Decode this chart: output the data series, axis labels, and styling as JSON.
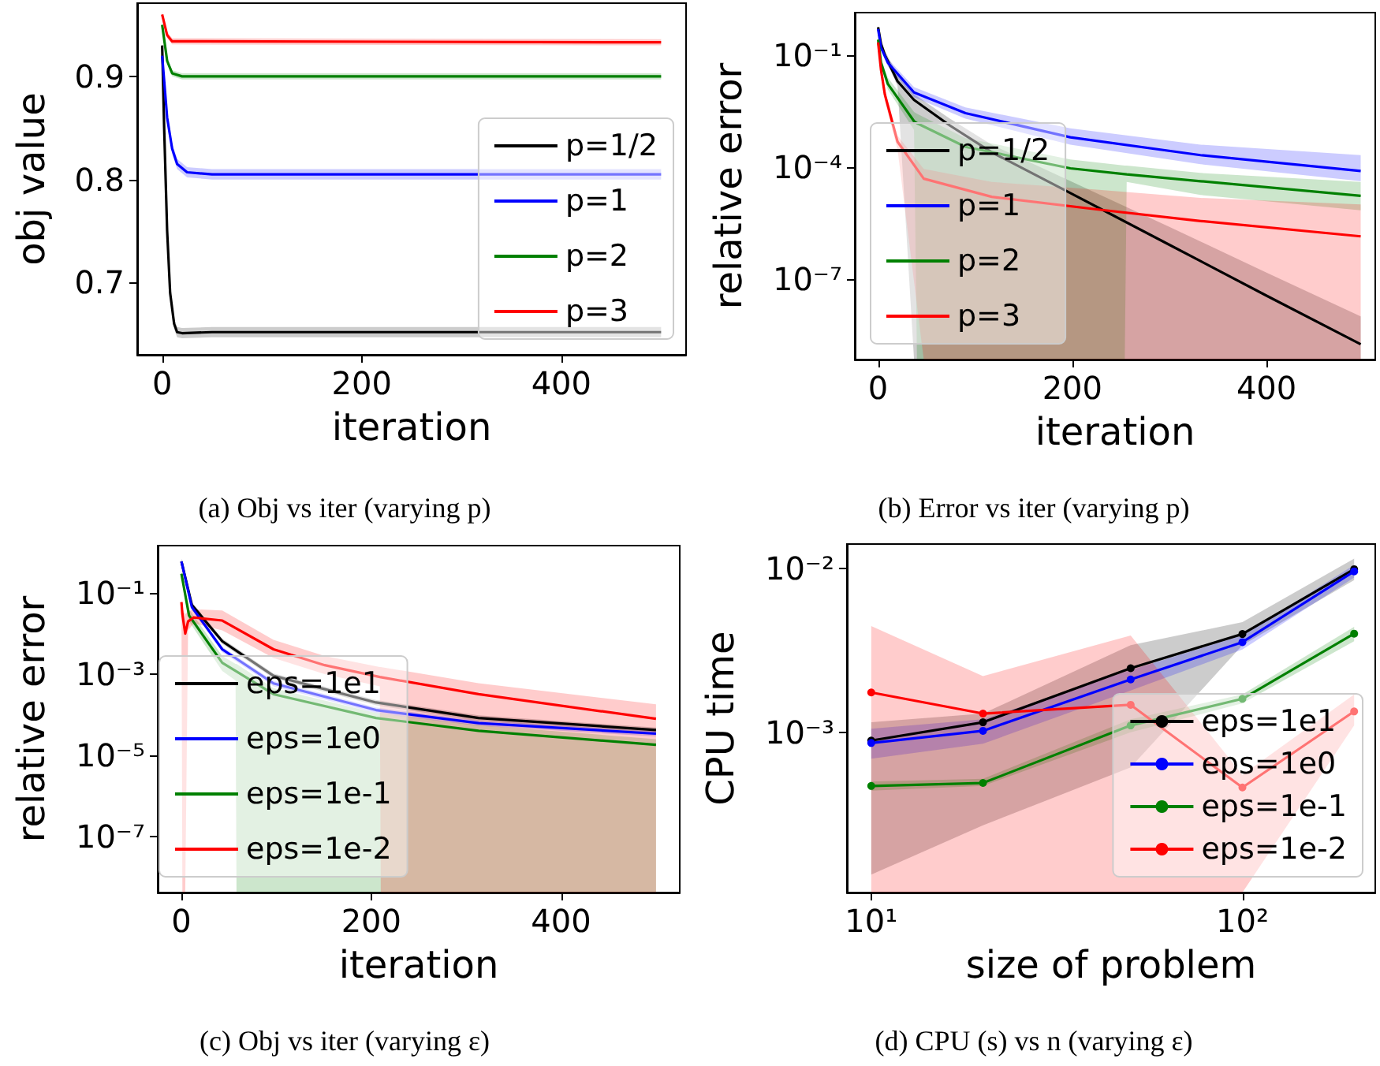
{
  "chart_data": [
    {
      "type": "line",
      "title": "(a) Obj vs iter (varying p)",
      "xlabel": "iteration",
      "ylabel": "obj value",
      "xlim": [
        -25,
        525
      ],
      "ylim": [
        0.63,
        0.971
      ],
      "xticks": [
        0,
        200,
        400
      ],
      "yticks": [
        0.7,
        0.8,
        0.9
      ],
      "legend": "bottom right",
      "series": [
        {
          "name": "p=1/2",
          "color": "#000000",
          "x": [
            0,
            2,
            5,
            8,
            12,
            15,
            20,
            50,
            100,
            500
          ],
          "values": [
            0.93,
            0.85,
            0.75,
            0.69,
            0.66,
            0.652,
            0.651,
            0.652,
            0.652,
            0.652
          ],
          "lower": [
            0.925,
            0.845,
            0.745,
            0.685,
            0.655,
            0.647,
            0.646,
            0.647,
            0.647,
            0.647
          ],
          "upper": [
            0.935,
            0.855,
            0.755,
            0.695,
            0.665,
            0.657,
            0.656,
            0.657,
            0.657,
            0.657
          ]
        },
        {
          "name": "p=1",
          "color": "#0000ff",
          "x": [
            0,
            5,
            10,
            15,
            25,
            50,
            500
          ],
          "values": [
            0.92,
            0.86,
            0.83,
            0.815,
            0.807,
            0.805,
            0.805
          ],
          "lower": [
            0.915,
            0.855,
            0.825,
            0.81,
            0.802,
            0.8,
            0.8
          ],
          "upper": [
            0.925,
            0.865,
            0.835,
            0.82,
            0.812,
            0.81,
            0.81
          ]
        },
        {
          "name": "p=2",
          "color": "#008000",
          "x": [
            0,
            5,
            10,
            20,
            500
          ],
          "values": [
            0.95,
            0.915,
            0.903,
            0.9,
            0.9
          ],
          "lower": [
            0.947,
            0.912,
            0.9,
            0.897,
            0.897
          ],
          "upper": [
            0.953,
            0.918,
            0.906,
            0.903,
            0.903
          ]
        },
        {
          "name": "p=3",
          "color": "#ff0000",
          "x": [
            0,
            5,
            10,
            500
          ],
          "values": [
            0.96,
            0.94,
            0.934,
            0.933
          ],
          "lower": [
            0.957,
            0.937,
            0.931,
            0.93
          ],
          "upper": [
            0.963,
            0.943,
            0.937,
            0.936
          ]
        }
      ]
    },
    {
      "type": "line",
      "title": "(b) Error vs iter (varying p)",
      "xlabel": "iteration",
      "ylabel": "relative error",
      "log": "y",
      "xlim": [
        -24,
        512
      ],
      "ylim": [
        7e-10,
        1.38
      ],
      "xticks": [
        0,
        200,
        400
      ],
      "yticks": [
        {
          "value": 0.1,
          "label": "10⁻¹"
        },
        {
          "value": 0.0001,
          "label": "10⁻⁴"
        },
        {
          "value": 1e-07,
          "label": "10⁻⁷"
        }
      ],
      "legend": "bottom left",
      "series": [
        {
          "name": "p=1/2",
          "color": "#000000",
          "x": [
            0,
            3,
            7,
            20,
            37,
            74,
            117,
            200,
            300,
            400,
            497
          ],
          "values": [
            0.56,
            0.2,
            0.1,
            0.02,
            0.0063,
            0.0013,
            0.00025,
            1.9e-05,
            8.3e-07,
            3.6e-08,
            1.8e-09
          ],
          "lower": [
            0.5,
            0.17,
            0.085,
            0.015,
            7e-10,
            7e-10,
            7e-10,
            7e-10,
            7e-10,
            7e-10,
            7e-10
          ],
          "upper": [
            0.6,
            0.25,
            0.13,
            0.03,
            0.009,
            0.002,
            0.0004,
            4e-05,
            2.5e-06,
            1.5e-07,
            1e-08
          ]
        },
        {
          "name": "p=1",
          "color": "#0000ff",
          "x": [
            0,
            3,
            10,
            37,
            90,
            198,
            332,
            497
          ],
          "values": [
            0.5,
            0.16,
            0.063,
            0.01,
            0.0028,
            0.00063,
            0.00021,
            7.9e-05
          ],
          "lower": [
            0.45,
            0.13,
            0.05,
            0.0075,
            0.002,
            0.0004,
            0.00012,
            4.2e-05
          ],
          "upper": [
            0.55,
            0.2,
            0.08,
            0.014,
            0.004,
            0.0011,
            0.0004,
            0.00021
          ]
        },
        {
          "name": "p=2",
          "color": "#008000",
          "x": [
            0,
            3,
            10,
            37,
            40,
            90,
            198,
            254,
            256,
            332,
            497
          ],
          "values": [
            0.26,
            0.063,
            0.017,
            0.0017,
            0.0015,
            0.00035,
            9.3e-05,
            6.5e-05,
            6.4e-05,
            4.2e-05,
            1.7e-05
          ],
          "lower": [
            0.22,
            0.05,
            0.012,
            0.001,
            7e-10,
            7e-10,
            7e-10,
            7e-10,
            4e-05,
            1.8e-05,
            7e-06
          ],
          "upper": [
            0.3,
            0.08,
            0.025,
            0.003,
            0.0027,
            0.0006,
            0.00016,
            0.00011,
            0.00011,
            7e-05,
            4e-05
          ]
        },
        {
          "name": "p=3",
          "color": "#ff0000",
          "x": [
            0,
            3,
            7,
            20,
            47,
            117,
            225,
            332,
            497
          ],
          "values": [
            0.22,
            0.04,
            0.0087,
            0.00048,
            4.9e-05,
            1.6e-05,
            7.4e-06,
            3.6e-06,
            1.4e-06
          ],
          "lower": [
            0.18,
            0.03,
            0.006,
            0.0003,
            7e-10,
            7e-10,
            7e-10,
            7e-10,
            7e-10
          ],
          "upper": [
            0.26,
            0.05,
            0.012,
            0.0007,
            9e-05,
            4e-05,
            2.5e-05,
            1.5e-05,
            1e-05
          ]
        }
      ]
    },
    {
      "type": "line",
      "title": "(c) Obj vs iter (varying ε)",
      "xlabel": "iteration",
      "ylabel": "relative error",
      "log": "y",
      "xlim": [
        -25,
        525
      ],
      "ylim": [
        4.1e-09,
        1.48
      ],
      "xticks": [
        0,
        200,
        400
      ],
      "yticks": [
        {
          "value": 0.1,
          "label": "10⁻¹"
        },
        {
          "value": 0.001,
          "label": "10⁻³"
        },
        {
          "value": 1e-05,
          "label": "10⁻⁵"
        },
        {
          "value": 1e-07,
          "label": "10⁻⁷"
        }
      ],
      "legend": "bottom left",
      "series": [
        {
          "name": "eps=1e1",
          "color": "#000000",
          "x": [
            0,
            11,
            43,
            97,
            205,
            313,
            500
          ],
          "values": [
            0.6,
            0.051,
            0.0065,
            0.00091,
            0.0002,
            8.3e-05,
            4.2e-05
          ],
          "lower": [
            0.52,
            0.044,
            0.0056,
            0.00078,
            0.00017,
            7e-05,
            3.6e-05
          ],
          "upper": [
            0.7,
            0.059,
            0.0075,
            0.00105,
            0.00023,
            9.6e-05,
            4.8e-05
          ]
        },
        {
          "name": "eps=1e0",
          "color": "#0000ff",
          "x": [
            0,
            11,
            43,
            97,
            205,
            313,
            500
          ],
          "values": [
            0.6,
            0.045,
            0.0041,
            0.00059,
            0.00013,
            6.2e-05,
            3.4e-05
          ],
          "lower": [
            0.52,
            0.039,
            0.0035,
            0.0005,
            0.00011,
            5.3e-05,
            2.9e-05
          ],
          "upper": [
            0.7,
            0.052,
            0.0047,
            0.00068,
            0.00015,
            7.1e-05,
            3.9e-05
          ]
        },
        {
          "name": "eps=1e-1",
          "color": "#008000",
          "x": [
            0,
            8,
            43,
            57,
            58,
            97,
            205,
            313,
            500
          ],
          "values": [
            0.3,
            0.028,
            0.0019,
            0.0012,
            0.0012,
            0.00032,
            8.3e-05,
            4e-05,
            1.8e-05
          ],
          "lower": [
            0.25,
            0.02,
            0.0012,
            0.0007,
            4.1e-09,
            4.1e-09,
            4.1e-09,
            4.1e-09,
            4.1e-09
          ],
          "upper": [
            0.35,
            0.04,
            0.0028,
            0.0018,
            0.0018,
            0.00045,
            0.00011,
            5.5e-05,
            2.5e-05
          ]
        },
        {
          "name": "eps=1e-2",
          "color": "#ff0000",
          "x": [
            0,
            1,
            4,
            7,
            13,
            43,
            97,
            151,
            209,
            210,
            313,
            500
          ],
          "values": [
            0.06,
            0.03,
            0.01,
            0.02,
            0.025,
            0.021,
            0.0041,
            0.00166,
            0.00085,
            0.00085,
            0.00032,
            7.9e-05
          ],
          "lower": [
            0.05,
            4.1e-09,
            4.1e-09,
            0.012,
            0.018,
            0.012,
            0.0025,
            0.001,
            0.0005,
            4.1e-09,
            4.1e-09,
            4.1e-09
          ],
          "upper": [
            0.07,
            0.04,
            0.03,
            0.035,
            0.04,
            0.037,
            0.007,
            0.0028,
            0.0015,
            0.0015,
            0.0006,
            0.00018
          ]
        }
      ]
    },
    {
      "type": "line",
      "title": "(d) CPU (s) vs n (varying ε)",
      "xlabel": "size of problem",
      "ylabel": "CPU time",
      "log": "xy",
      "marker": "circle",
      "xlim": [
        8.6,
        228
      ],
      "ylim": [
        0.000105,
        0.0141
      ],
      "xticks": [
        {
          "value": 10,
          "label": "10¹"
        },
        {
          "value": 100,
          "label": "10²"
        }
      ],
      "yticks": [
        {
          "value": 0.001,
          "label": "10⁻³"
        },
        {
          "value": 0.01,
          "label": "10⁻²"
        }
      ],
      "legend": "bottom right",
      "series": [
        {
          "name": "eps=1e1",
          "color": "#000000",
          "x": [
            10,
            20,
            50,
            100,
            200
          ],
          "values": [
            0.00089,
            0.00115,
            0.00246,
            0.00398,
            0.0099
          ],
          "lower": [
            0.000135,
            0.00027,
            0.00061,
            0.0034,
            0.0085
          ],
          "upper": [
            0.00115,
            0.0013,
            0.0034,
            0.0047,
            0.0115
          ]
        },
        {
          "name": "eps=1e0",
          "color": "#0000ff",
          "x": [
            10,
            20,
            50,
            100,
            200
          ],
          "values": [
            0.00086,
            0.00102,
            0.0021,
            0.00355,
            0.0096
          ],
          "lower": [
            0.00069,
            0.00085,
            0.0018,
            0.0032,
            0.0088
          ],
          "upper": [
            0.00105,
            0.0012,
            0.0024,
            0.0039,
            0.0105
          ]
        },
        {
          "name": "eps=1e-1",
          "color": "#008000",
          "x": [
            10,
            20,
            50,
            100,
            200
          ],
          "values": [
            0.00047,
            0.00049,
            0.0011,
            0.0016,
            0.004
          ],
          "lower": [
            0.00044,
            0.00047,
            0.001,
            0.0015,
            0.0036
          ],
          "upper": [
            0.0005,
            0.00052,
            0.0012,
            0.0017,
            0.0044
          ]
        },
        {
          "name": "eps=1e-2",
          "color": "#ff0000",
          "x": [
            10,
            20,
            50,
            100,
            200
          ],
          "values": [
            0.00175,
            0.0013,
            0.00147,
            0.00046,
            0.00134
          ],
          "lower": [
            0.000105,
            0.000105,
            0.000105,
            0.000105,
            0.0011
          ],
          "upper": [
            0.00445,
            0.0022,
            0.0039,
            0.00055,
            0.0017
          ]
        }
      ]
    }
  ]
}
